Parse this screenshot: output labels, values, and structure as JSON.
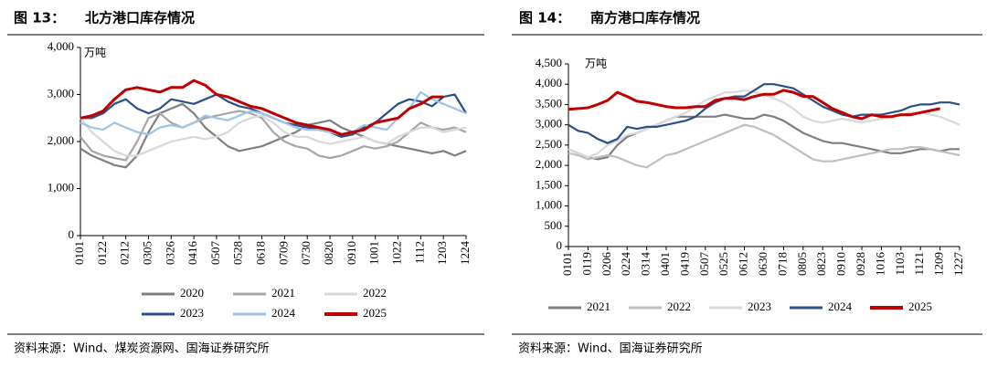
{
  "chart_data": [
    {
      "type": "line",
      "figure_label": "图 13：",
      "title": "北方港口库存情况",
      "unit": "万吨",
      "source": "资料来源：Wind、煤炭资源网、国海证券研究所",
      "categories": [
        "0101",
        null,
        "0122",
        null,
        "0212",
        null,
        "0305",
        null,
        "0326",
        null,
        "0416",
        null,
        "0507",
        null,
        "0528",
        null,
        "0618",
        null,
        "0709",
        null,
        "0730",
        null,
        "0820",
        null,
        "0910",
        null,
        "1001",
        null,
        "1022",
        null,
        "1112",
        null,
        "1203",
        null,
        "1224"
      ],
      "ylim": [
        0,
        4000
      ],
      "yticks": [
        0,
        {
          "value": 1000,
          "label": "1,000"
        },
        {
          "value": 2000,
          "label": "2,000"
        },
        {
          "value": 3000,
          "label": "3,000"
        },
        {
          "value": 4000,
          "label": "4,000"
        }
      ],
      "series": [
        {
          "name": "2020",
          "color": "#7f7f7f",
          "values": [
            1850,
            1700,
            1600,
            1500,
            1450,
            1700,
            2200,
            2600,
            2700,
            2800,
            2600,
            2300,
            2100,
            1900,
            1800,
            1850,
            1900,
            2000,
            2100,
            2200,
            2350,
            2400,
            2450,
            2300,
            2200,
            2100,
            2000,
            1950,
            1900,
            1850,
            1800,
            1750,
            1800,
            1700,
            1800
          ]
        },
        {
          "name": "2021",
          "color": "#a6a6a6",
          "values": [
            2100,
            1800,
            1700,
            1650,
            1600,
            2000,
            2500,
            2600,
            2400,
            2300,
            2400,
            2500,
            2550,
            2600,
            2650,
            2600,
            2500,
            2200,
            2000,
            1900,
            1850,
            1700,
            1650,
            1700,
            1800,
            1900,
            1850,
            1900,
            2000,
            2200,
            2400,
            2300,
            2250,
            2300,
            2200
          ]
        },
        {
          "name": "2022",
          "color": "#d9d9d9",
          "values": [
            2500,
            2200,
            2000,
            1800,
            1700,
            1700,
            1800,
            1900,
            2000,
            2050,
            2100,
            2050,
            2100,
            2200,
            2400,
            2500,
            2550,
            2400,
            2200,
            2100,
            2100,
            2000,
            1950,
            2000,
            2050,
            2100,
            2000,
            1950,
            2100,
            2200,
            2300,
            2300,
            2200,
            2250,
            2300
          ]
        },
        {
          "name": "2023",
          "color": "#2b4f86",
          "values": [
            2500,
            2500,
            2600,
            2800,
            2900,
            2700,
            2600,
            2700,
            2900,
            2850,
            2800,
            2900,
            3000,
            2850,
            2750,
            2700,
            2600,
            2500,
            2400,
            2350,
            2300,
            2250,
            2200,
            2100,
            2150,
            2300,
            2400,
            2600,
            2800,
            2900,
            2850,
            2750,
            2950,
            3000,
            2600
          ]
        },
        {
          "name": "2024",
          "color": "#9dc3e6",
          "values": [
            2400,
            2300,
            2250,
            2400,
            2300,
            2200,
            2150,
            2300,
            2350,
            2300,
            2400,
            2550,
            2500,
            2450,
            2550,
            2650,
            2600,
            2500,
            2400,
            2300,
            2250,
            2250,
            2200,
            2150,
            2200,
            2350,
            2300,
            2250,
            2500,
            2700,
            3050,
            2900,
            2800,
            2700,
            2600
          ]
        },
        {
          "name": "2025",
          "color": "#c00000",
          "values": [
            2500,
            2550,
            2650,
            2900,
            3100,
            3150,
            3100,
            3050,
            3150,
            3150,
            3300,
            3200,
            3000,
            2950,
            2850,
            2750,
            2700,
            2600,
            2500,
            2400,
            2350,
            2300,
            2250,
            2150,
            2200,
            2250,
            2400,
            2450,
            2500,
            2700,
            2800,
            2950,
            2950,
            null,
            null
          ]
        }
      ]
    },
    {
      "type": "line",
      "figure_label": "图 14：",
      "title": "南方港口库存情况",
      "unit": "万吨",
      "source": "资料来源：Wind、国海证券研究所",
      "categories": [
        "0101",
        null,
        "0119",
        null,
        "0206",
        null,
        "0224",
        null,
        "0314",
        null,
        "0401",
        null,
        "0419",
        null,
        "0507",
        null,
        "0525",
        null,
        "0612",
        null,
        "0630",
        null,
        "0718",
        null,
        "0805",
        null,
        "0823",
        null,
        "0910",
        null,
        "0928",
        null,
        "1016",
        null,
        "1103",
        null,
        "1121",
        null,
        "1209",
        null,
        "1227"
      ],
      "ylim": [
        0,
        4500
      ],
      "yticks": [
        0,
        500,
        {
          "value": 1000,
          "label": "1,000"
        },
        {
          "value": 1500,
          "label": "1,500"
        },
        {
          "value": 2000,
          "label": "2,000"
        },
        {
          "value": 2500,
          "label": "2,500"
        },
        {
          "value": 3000,
          "label": "3,000"
        },
        {
          "value": 3500,
          "label": "3,500"
        },
        {
          "value": 4000,
          "label": "4,000"
        },
        {
          "value": 4500,
          "label": "4,500"
        }
      ],
      "series": [
        {
          "name": "2021",
          "color": "#7f7f7f",
          "values": [
            2400,
            2300,
            2200,
            2150,
            2200,
            2500,
            2700,
            2800,
            2900,
            3000,
            3100,
            3200,
            3200,
            3200,
            3200,
            3200,
            3250,
            3200,
            3150,
            3150,
            3250,
            3200,
            3100,
            2950,
            2800,
            2700,
            2600,
            2550,
            2550,
            2500,
            2450,
            2400,
            2350,
            2300,
            2300,
            2350,
            2400,
            2400,
            2350,
            2400,
            2400
          ]
        },
        {
          "name": "2022",
          "color": "#bfbfbf",
          "values": [
            2300,
            2250,
            2150,
            2200,
            2250,
            2200,
            2100,
            2000,
            1950,
            2100,
            2250,
            2300,
            2400,
            2500,
            2600,
            2700,
            2800,
            2900,
            3000,
            2950,
            2850,
            2750,
            2600,
            2450,
            2300,
            2150,
            2100,
            2100,
            2150,
            2200,
            2250,
            2300,
            2350,
            2400,
            2400,
            2450,
            2450,
            2400,
            2350,
            2300,
            2250
          ]
        },
        {
          "name": "2023",
          "color": "#d9d9d9",
          "values": [
            2400,
            2300,
            2200,
            2300,
            2500,
            2600,
            2750,
            2800,
            2900,
            3000,
            3100,
            3200,
            3300,
            3450,
            3600,
            3700,
            3800,
            3800,
            3850,
            3800,
            3750,
            3650,
            3550,
            3400,
            3200,
            3100,
            3050,
            3100,
            3150,
            3100,
            3050,
            3100,
            3150,
            3200,
            3250,
            3300,
            3300,
            3250,
            3200,
            3100,
            3000
          ]
        },
        {
          "name": "2024",
          "color": "#2b4f86",
          "values": [
            3000,
            2850,
            2800,
            2650,
            2550,
            2650,
            2950,
            2900,
            2950,
            2950,
            3000,
            3050,
            3100,
            3200,
            3400,
            3550,
            3650,
            3700,
            3700,
            3850,
            4000,
            4000,
            3950,
            3900,
            3750,
            3600,
            3450,
            3350,
            3250,
            3200,
            3250,
            3250,
            3250,
            3300,
            3350,
            3450,
            3500,
            3500,
            3550,
            3550,
            3500
          ]
        },
        {
          "name": "2025",
          "color": "#c00000",
          "values": [
            3380,
            3400,
            3420,
            3500,
            3600,
            3800,
            3700,
            3580,
            3550,
            3500,
            3450,
            3420,
            3420,
            3450,
            3450,
            3600,
            3650,
            3650,
            3620,
            3700,
            3750,
            3750,
            3850,
            3800,
            3700,
            3700,
            3550,
            3400,
            3300,
            3200,
            3150,
            3250,
            3200,
            3200,
            3250,
            3250,
            3300,
            3350,
            3400,
            null,
            null
          ]
        }
      ]
    }
  ]
}
